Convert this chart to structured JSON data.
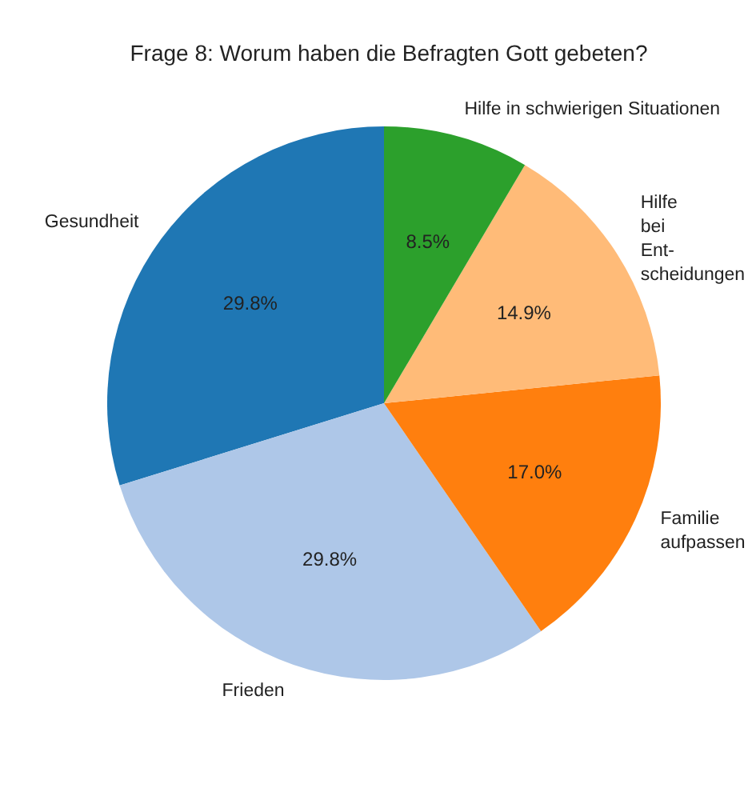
{
  "chart_data": {
    "type": "pie",
    "title": "Frage 8: Worum haben die Befragten Gott gebeten?",
    "categories": [
      "Gesundheit",
      "Frieden",
      "Familie\naufpassen",
      "Hilfe\nbei\nEnt-\nscheidungen",
      "Hilfe in schwierigen Situationen"
    ],
    "values": [
      29.8,
      29.8,
      17.0,
      14.9,
      8.5
    ],
    "colors": [
      "#1f77b4",
      "#aec7e8",
      "#ff7f0e",
      "#ffbb78",
      "#2ca02c"
    ],
    "value_labels": [
      "29.8%",
      "29.8%",
      "17.0%",
      "14.9%",
      "8.5%"
    ]
  }
}
